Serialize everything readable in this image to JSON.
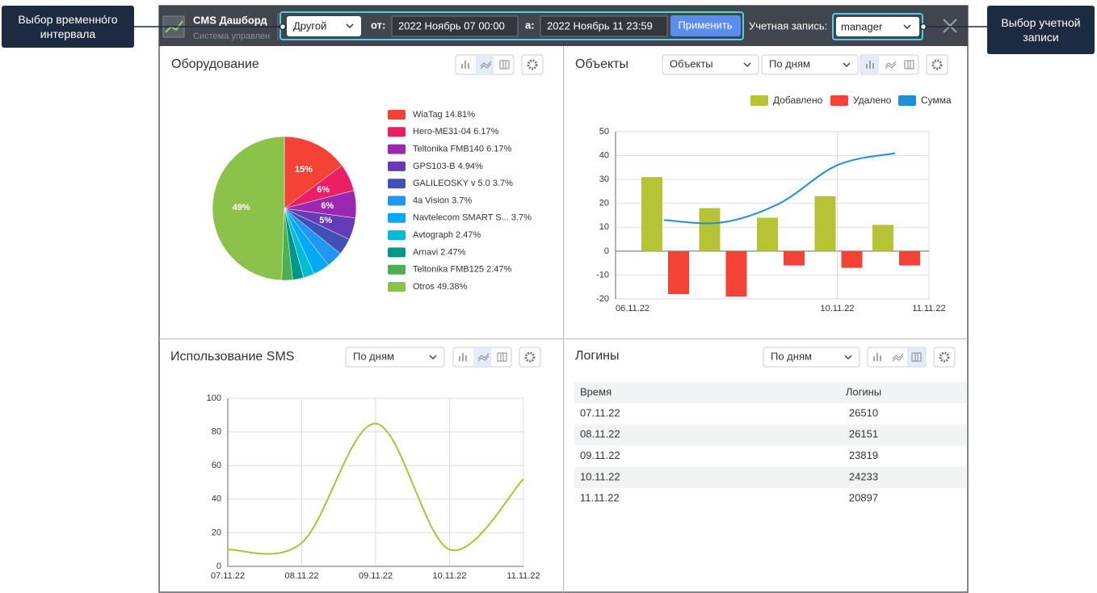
{
  "callouts": {
    "interval": "Выбор временно́го интервала",
    "account": "Выбор учетной записи"
  },
  "header": {
    "title": "CMS Дашборд",
    "subtitle": "Система управлен",
    "period": "Другой",
    "from_label": "от:",
    "from": "2022 Ноябрь 07 00:00",
    "to_label": "а:",
    "to": "2022 Ноябрь 11 23:59",
    "apply": "Применить",
    "account_label": "Учетная запись:",
    "account": "manager"
  },
  "panels": {
    "equipment": {
      "title": "Оборудование"
    },
    "objects": {
      "title": "Объекты",
      "metric": "Объекты",
      "period": "По дням"
    },
    "sms": {
      "title": "Использование SMS",
      "period": "По дням"
    },
    "logins": {
      "title": "Логины",
      "period": "По дням"
    }
  },
  "chart_data": [
    {
      "type": "pie",
      "categories": [
        "WiaTag 14.81%",
        "Hero-ME31-04 6.17%",
        "Teltonika FMB140 6.17%",
        "GPS103-B 4.94%",
        "GALILEOSKY v 5.0 3.7%",
        "4a Vision 3.7%",
        "Navtelecom SMART S... 3.7%",
        "Avtograph 2.47%",
        "Arnavi 2.47%",
        "Teltonika FMB125 2.47%",
        "Otros 49.38%"
      ],
      "values": [
        14.81,
        6.17,
        6.17,
        4.94,
        3.7,
        3.7,
        3.7,
        2.47,
        2.47,
        2.47,
        49.38
      ],
      "value_labels": [
        "15%",
        "6%",
        "6%",
        "5%",
        null,
        null,
        null,
        null,
        null,
        null,
        "49%"
      ],
      "colors": [
        "#f44336",
        "#e91e63",
        "#9c27b0",
        "#673ab7",
        "#3f51b5",
        "#2196f3",
        "#03a9f4",
        "#00bcd4",
        "#009688",
        "#4caf50",
        "#8bc34a"
      ],
      "legend": "right"
    },
    {
      "type": "bar",
      "categories": [
        null,
        null,
        null,
        "10.11.22",
        null
      ],
      "x_range_labels": [
        "06.11.22",
        "11.11.22"
      ],
      "series": [
        {
          "name": "Добавлено",
          "color": "#b5c334",
          "type": "bar",
          "values": [
            31,
            18,
            14,
            23,
            11
          ]
        },
        {
          "name": "Удалено",
          "color": "#f44336",
          "type": "bar",
          "values": [
            -18,
            -19,
            -6,
            -7,
            -6
          ]
        },
        {
          "name": "Сумма",
          "color": "#1e90d6",
          "type": "line",
          "values": [
            13,
            12,
            20,
            36,
            41
          ]
        }
      ],
      "ylim": [
        -20,
        50
      ],
      "yticks": [
        -20,
        -10,
        0,
        10,
        20,
        30,
        40,
        50
      ],
      "grid": true,
      "legend": "top-right"
    },
    {
      "type": "line",
      "categories": [
        "07.11.22",
        "08.11.22",
        "09.11.22",
        "10.11.22",
        "11.11.22"
      ],
      "series": [
        {
          "name": "SMS",
          "color": "#afc03a",
          "values": [
            10,
            14,
            85,
            10,
            52
          ]
        }
      ],
      "ylim": [
        0,
        100
      ],
      "yticks": [
        0,
        20,
        40,
        60,
        80,
        100
      ],
      "grid": true
    }
  ],
  "logins_table": {
    "columns": [
      "Время",
      "Логины"
    ],
    "rows": [
      [
        "07.11.22",
        26510
      ],
      [
        "08.11.22",
        26151
      ],
      [
        "09.11.22",
        23819
      ],
      [
        "10.11.22",
        24233
      ],
      [
        "11.11.22",
        20897
      ]
    ]
  }
}
